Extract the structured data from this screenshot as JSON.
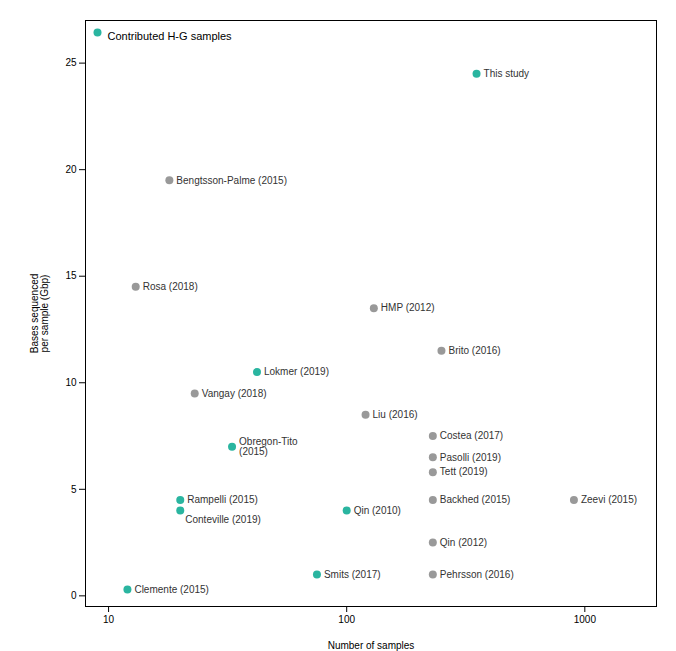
{
  "chart_data": {
    "type": "scatter",
    "xlabel": "Number of samples",
    "ylabel": "Bases sequenced\nper sample (Gbp)",
    "log": "x",
    "xlim": [
      8,
      2000
    ],
    "ylim": [
      -0.5,
      27
    ],
    "xticks": [
      10,
      100,
      1000
    ],
    "yticks": [
      0,
      5,
      10,
      15,
      20,
      25
    ],
    "grid": false,
    "legend": "upper left",
    "series": [
      {
        "name": "Contributed H-G samples",
        "color": "#2ab5a0",
        "x": [
          351,
          42,
          33,
          20,
          100,
          20,
          75,
          12
        ],
        "values": [
          24.5,
          10.5,
          7.0,
          4.5,
          4.0,
          4.0,
          1.0,
          0.3
        ],
        "labels": [
          "This study",
          "Lokmer (2019)",
          "Obregon-Tito\n(2015)",
          "Rampelli (2015)",
          "Qin (2010)",
          "Conteville (2019)",
          "Smits (2017)",
          "Clemente (2015)"
        ]
      },
      {
        "name": null,
        "color": "#999999",
        "x": [
          18,
          13,
          130,
          250,
          23,
          120,
          230,
          230,
          230,
          230,
          230,
          900,
          230
        ],
        "values": [
          19.5,
          14.5,
          13.5,
          11.5,
          9.5,
          8.5,
          7.5,
          6.5,
          5.8,
          4.5,
          2.5,
          4.5,
          1.0
        ],
        "labels": [
          "Bengtsson-Palme (2015)",
          "Rosa (2018)",
          "HMP (2012)",
          "Brito (2016)",
          "Vangay (2018)",
          "Liu (2016)",
          "Costea (2017)",
          "Pasolli (2019)",
          "Tett (2019)",
          "Backhed (2015)",
          "Qin (2012)",
          "Zeevi (2015)",
          "Pehrsson (2016)"
        ]
      }
    ]
  }
}
